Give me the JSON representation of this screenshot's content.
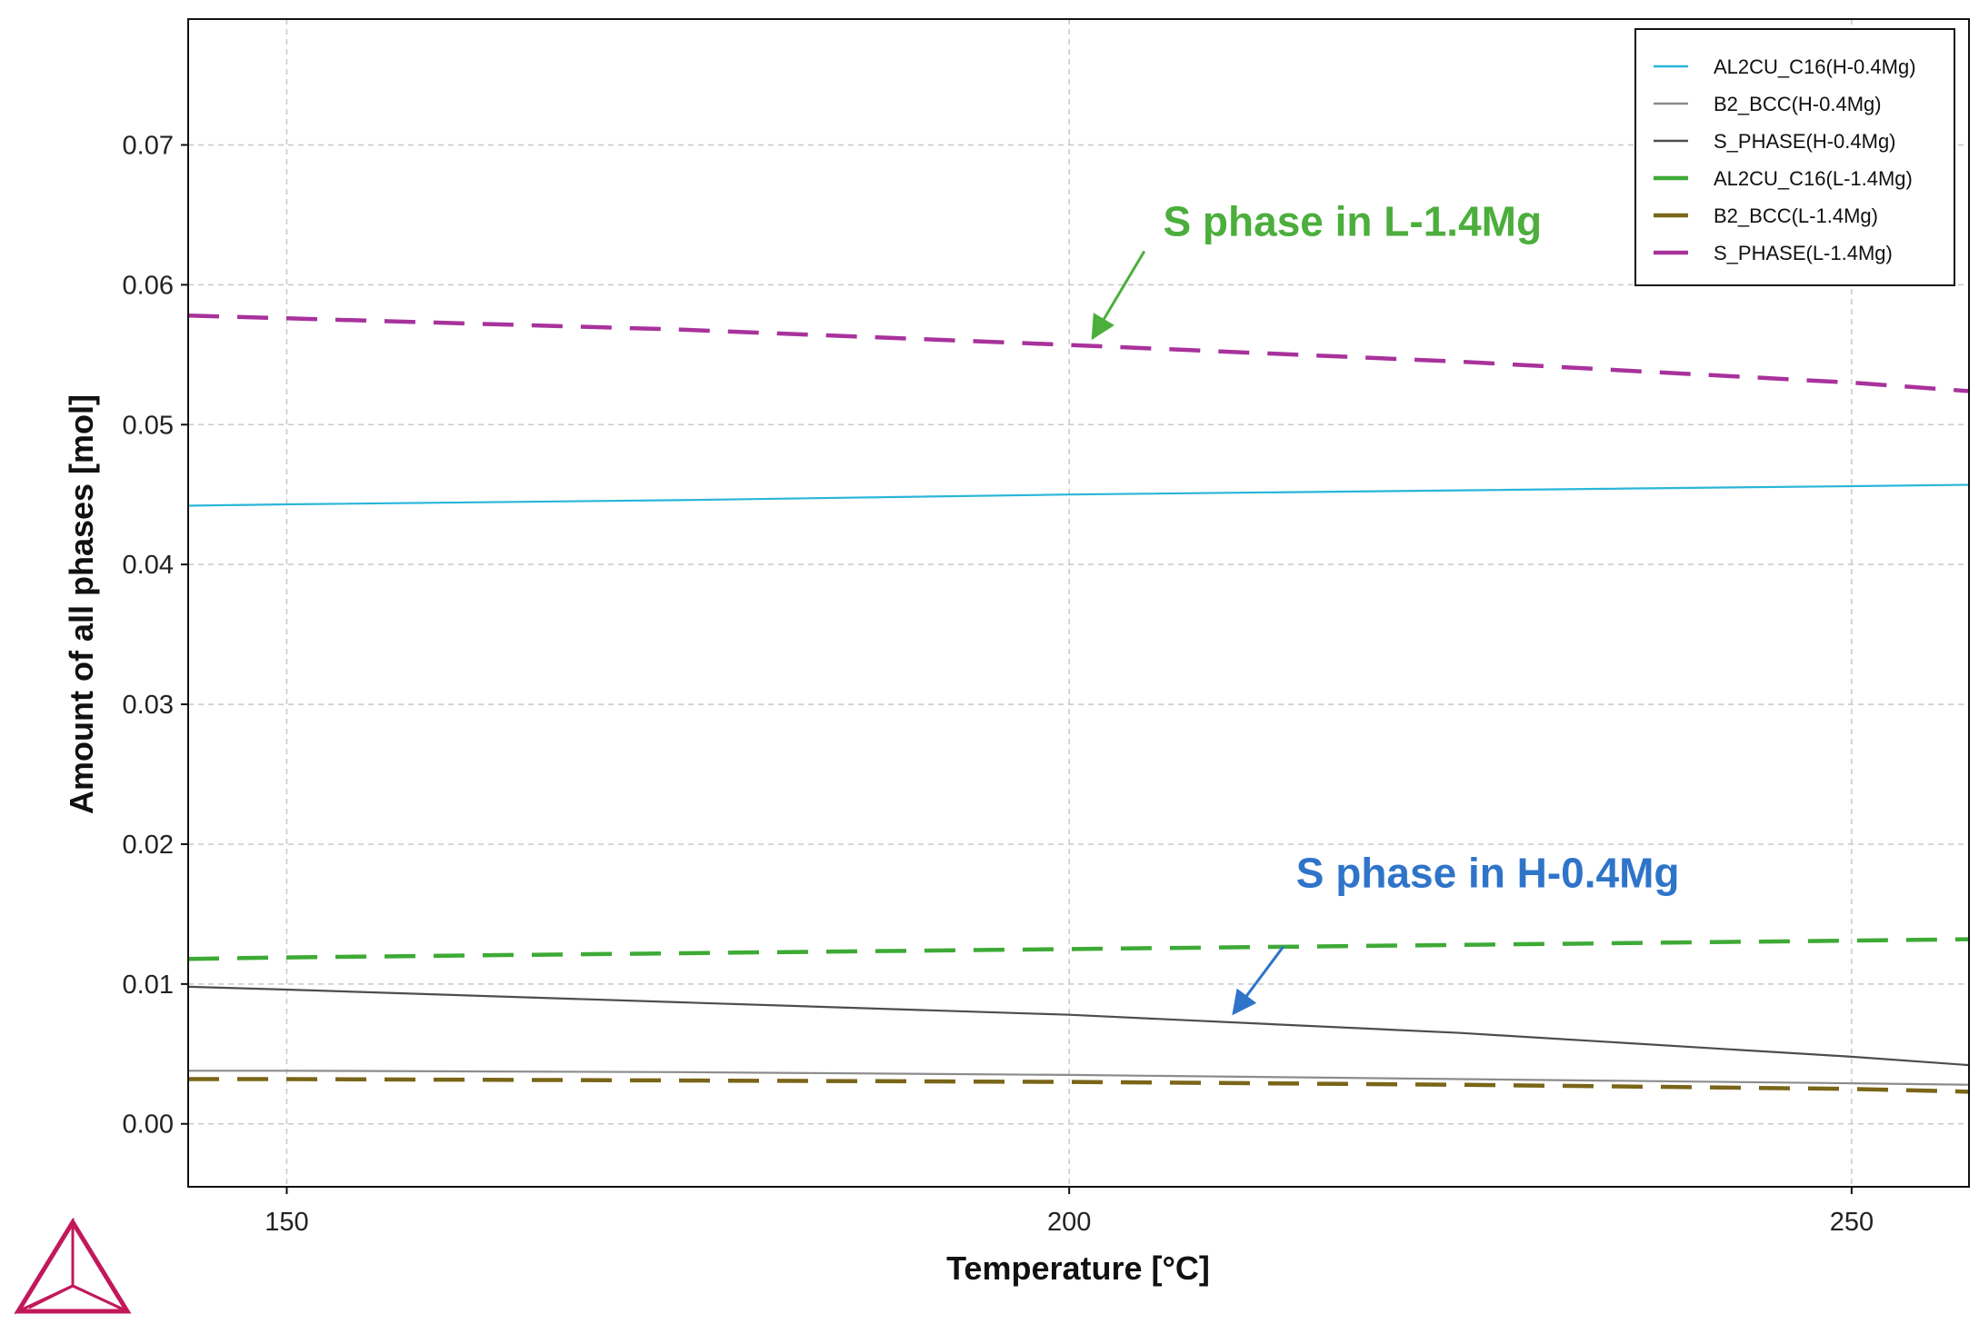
{
  "chart_data": {
    "type": "line",
    "title": "",
    "xlabel": "Temperature [°C]",
    "ylabel": "Amount of all phases [mol]",
    "xlim": [
      143.7,
      257.5
    ],
    "ylim": [
      -0.0045,
      0.079
    ],
    "x_ticks": [
      150,
      200,
      250
    ],
    "x_tick_labels": [
      "150",
      "200",
      "250"
    ],
    "y_ticks": [
      0.0,
      0.01,
      0.02,
      0.03,
      0.04,
      0.05,
      0.06,
      0.07
    ],
    "y_tick_labels": [
      "0.00",
      "0.01",
      "0.02",
      "0.03",
      "0.04",
      "0.05",
      "0.06",
      "0.07"
    ],
    "grid": true,
    "legend_position": "top-right",
    "x": [
      143.7,
      150,
      175,
      200,
      225,
      250,
      257.5
    ],
    "series": [
      {
        "name": "AL2CU_C16(H-0.4Mg)",
        "color": "#29b6d9",
        "style": "solid",
        "values": [
          0.0442,
          0.0443,
          0.0446,
          0.045,
          0.0453,
          0.0456,
          0.0457
        ]
      },
      {
        "name": "B2_BCC(H-0.4Mg)",
        "color": "#8c8c8c",
        "style": "solid",
        "values": [
          0.0038,
          0.0038,
          0.0037,
          0.0035,
          0.0032,
          0.0029,
          0.0028
        ]
      },
      {
        "name": "S_PHASE(H-0.4Mg)",
        "color": "#4d4d4d",
        "style": "solid",
        "values": [
          0.0098,
          0.0096,
          0.0087,
          0.0078,
          0.0065,
          0.0048,
          0.0042
        ]
      },
      {
        "name": "AL2CU_C16(L-1.4Mg)",
        "color": "#3daa35",
        "style": "dashed",
        "values": [
          0.0118,
          0.0119,
          0.0122,
          0.0125,
          0.0128,
          0.0131,
          0.0132
        ]
      },
      {
        "name": "B2_BCC(L-1.4Mg)",
        "color": "#7a6518",
        "style": "dashed",
        "values": [
          0.0032,
          0.0032,
          0.0031,
          0.003,
          0.0028,
          0.0025,
          0.0023
        ]
      },
      {
        "name": "S_PHASE(L-1.4Mg)",
        "color": "#a8329c",
        "style": "dashed",
        "values": [
          0.0578,
          0.0576,
          0.0568,
          0.0557,
          0.0545,
          0.053,
          0.0524
        ]
      }
    ],
    "annotations": [
      {
        "text": "S phase in L-1.4Mg",
        "color": "#4cae3c",
        "label_x": 206.0,
        "label_y": 0.0635,
        "arrow_from_x": 204.8,
        "arrow_from_y": 0.0624,
        "arrow_to_x": 201.5,
        "arrow_to_y": 0.0562
      },
      {
        "text": "S phase in H-0.4Mg",
        "color": "#2e74c9",
        "label_x": 214.5,
        "label_y": 0.0169,
        "arrow_from_x": 213.7,
        "arrow_from_y": 0.0127,
        "arrow_to_x": 210.5,
        "arrow_to_y": 0.0079
      }
    ]
  },
  "logo": {
    "name": "thermo-calc-logo-icon",
    "color": "#c2185b"
  }
}
